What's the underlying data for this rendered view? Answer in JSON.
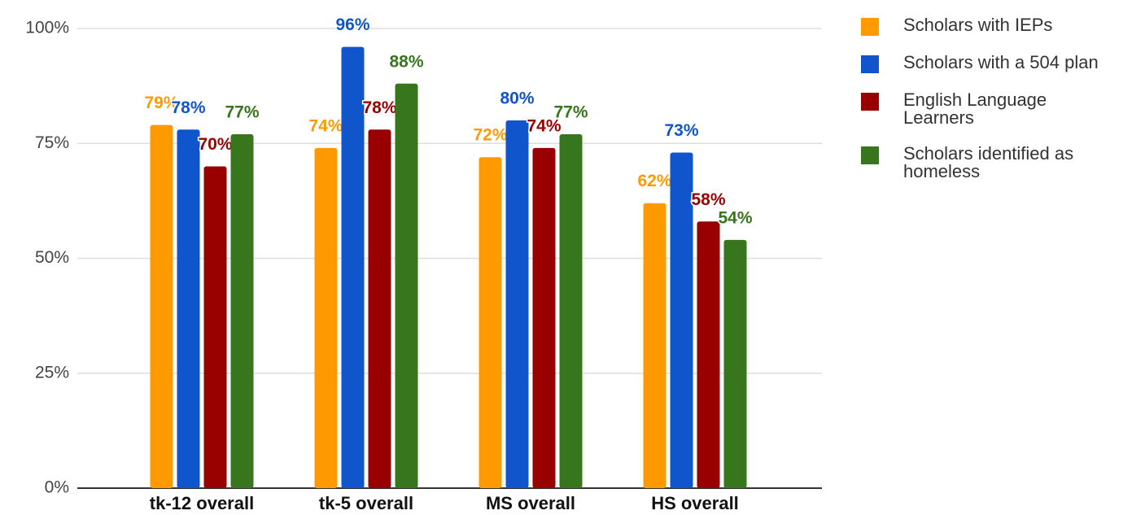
{
  "chart_data": {
    "type": "bar",
    "categories": [
      "tk-12 overall",
      "tk-5 overall",
      "MS overall",
      "HS overall"
    ],
    "series": [
      {
        "name": "Scholars with IEPs",
        "color": "#ff9900",
        "values": [
          79,
          74,
          72,
          62
        ],
        "value_labels": [
          "79%",
          "74%",
          "72%",
          "62%"
        ]
      },
      {
        "name": "Scholars with a 504 plan",
        "color": "#1155cc",
        "values": [
          78,
          96,
          80,
          73
        ],
        "value_labels": [
          "78%",
          "96%",
          "80%",
          "73%"
        ]
      },
      {
        "name": "English Language Learners",
        "color": "#990000",
        "values": [
          70,
          78,
          74,
          58
        ],
        "value_labels": [
          "70%",
          "78%",
          "74%",
          "58%"
        ]
      },
      {
        "name": "Scholars identified as homeless",
        "color": "#38761d",
        "values": [
          77,
          88,
          77,
          54
        ],
        "value_labels": [
          "77%",
          "88%",
          "77%",
          "54%"
        ]
      }
    ],
    "ylim": [
      0,
      100
    ],
    "yticks": [
      {
        "value": 0,
        "label": "0%"
      },
      {
        "value": 25,
        "label": "25%"
      },
      {
        "value": 50,
        "label": "50%"
      },
      {
        "value": 75,
        "label": "75%"
      },
      {
        "value": 100,
        "label": "100%"
      }
    ],
    "grid": true,
    "legend": "right"
  }
}
